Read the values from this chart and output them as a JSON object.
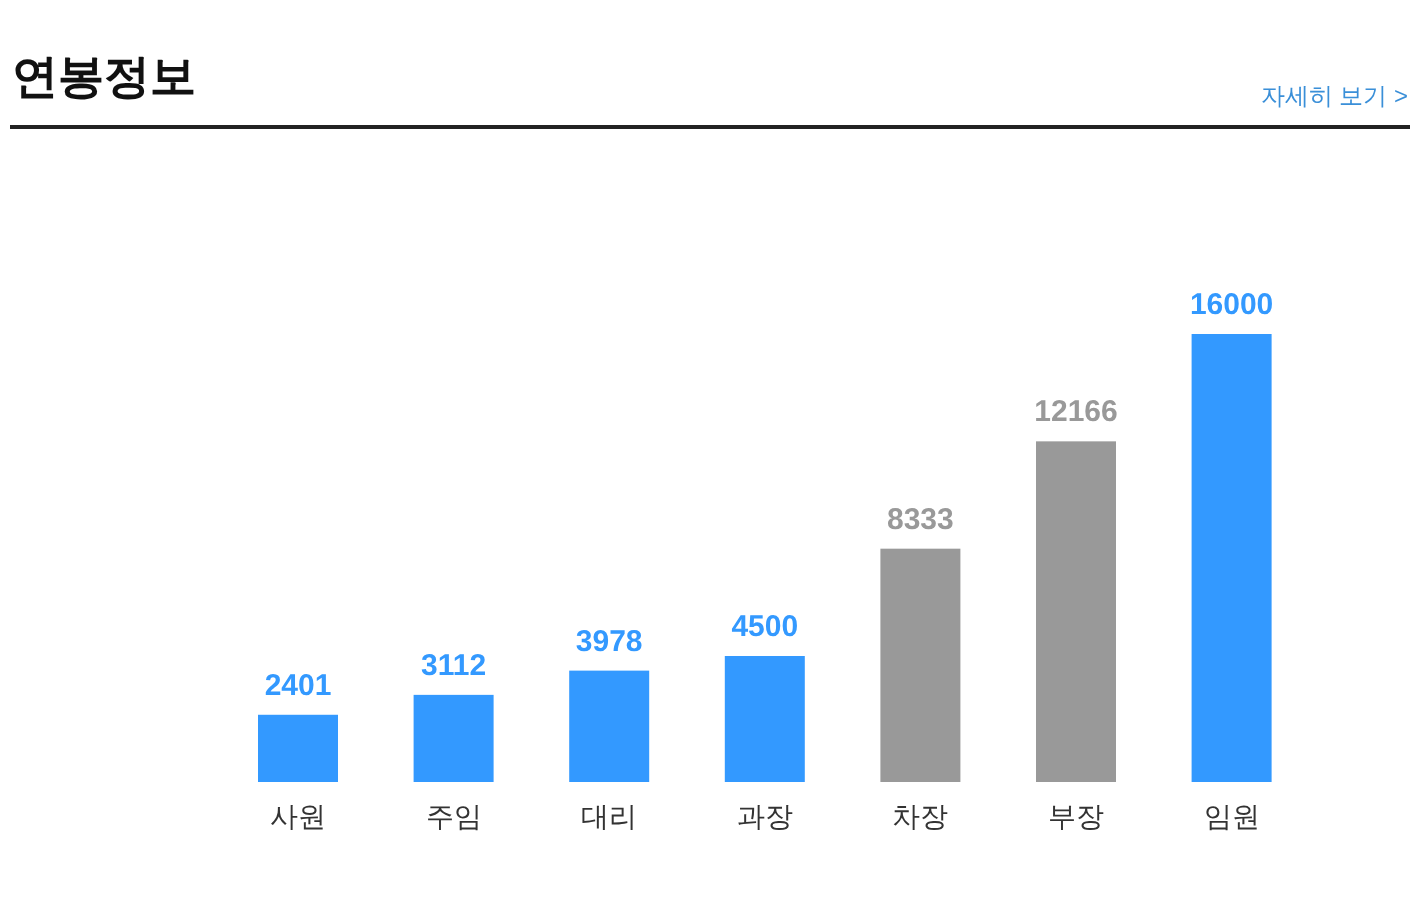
{
  "chart_data": {
    "type": "bar",
    "title": "연봉정보",
    "annotations": [
      "자세히 보기 >"
    ],
    "categories": [
      "사원",
      "주임",
      "대리",
      "과장",
      "차장",
      "부장",
      "임원"
    ],
    "values": [
      2401,
      3112,
      3978,
      4500,
      8333,
      12166,
      16000
    ],
    "colors": [
      "#3399ff",
      "#3399ff",
      "#3399ff",
      "#3399ff",
      "#999999",
      "#999999",
      "#3399ff"
    ],
    "data_labels": true
  }
}
